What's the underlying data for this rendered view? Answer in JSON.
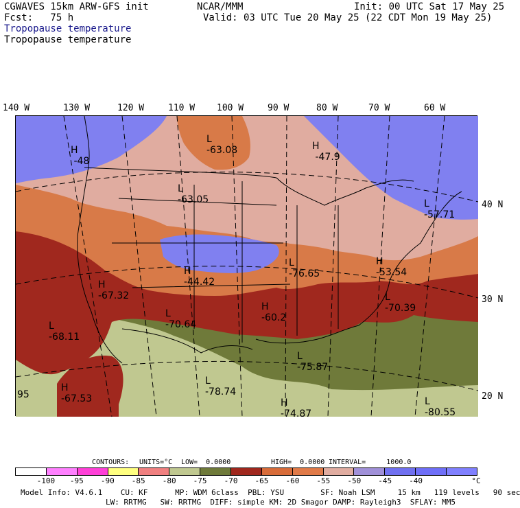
{
  "header": {
    "model": "CGWAVES 15km ARW-GFS init",
    "forecast": "Fcst:   75 h",
    "org": "NCAR/MMM",
    "init": "Init: 00 UTC Sat 17 May 25",
    "valid": "Valid: 03 UTC Tue 20 May 25 (22 CDT Mon 19 May 25)",
    "field_blue": "Tropopause temperature",
    "field_black": "Tropopause temperature"
  },
  "axes": {
    "longitudes": [
      "140 W",
      "130 W",
      "120 W",
      "110 W",
      "100 W",
      "90 W",
      "80 W",
      "70 W",
      "60 W"
    ],
    "latitudes": [
      "40 N",
      "30 N",
      "20 N"
    ]
  },
  "map_labels": [
    {
      "letter": "H",
      "value": "-48"
    },
    {
      "letter": "L",
      "value": "-63.08"
    },
    {
      "letter": "H",
      "value": "-47.9"
    },
    {
      "letter": "L",
      "value": "-63.05"
    },
    {
      "letter": "L",
      "value": "-57.71"
    },
    {
      "letter": "H",
      "value": "-53.54"
    },
    {
      "letter": "H",
      "value": "-44.42"
    },
    {
      "letter": "L",
      "value": "-76.65"
    },
    {
      "letter": "H",
      "value": "-67.32"
    },
    {
      "letter": "L",
      "value": "-70.64"
    },
    {
      "letter": "H",
      "value": "-60.2"
    },
    {
      "letter": "L",
      "value": "-70.39"
    },
    {
      "letter": "L",
      "value": "-68.11"
    },
    {
      "letter": "L",
      "value": "-75.87"
    },
    {
      "letter": "H",
      "value": "-67.53"
    },
    {
      "letter": "L",
      "value": "-78.74"
    },
    {
      "letter": "H",
      "value": "-74.87"
    },
    {
      "letter": "L",
      "value": "-80.55"
    },
    {
      "letter": "",
      "value": "95"
    }
  ],
  "contours": {
    "label": "CONTOURS:",
    "units": "UNITS=°C",
    "low": "LOW=  0.0000",
    "high": "HIGH=  0.0000",
    "interval": "INTERVAL=     1000.0"
  },
  "colorbar": {
    "colors": [
      "#ffffff",
      "#ff80ff",
      "#ff40d8",
      "#ffff80",
      "#f08080",
      "#c0c890",
      "#6f7a3a",
      "#a0281e",
      "#d86c3a",
      "#e07a48",
      "#e0aca0",
      "#a090d8",
      "#7070f0",
      "#6f6ff8",
      "#8080ff"
    ],
    "ticks": [
      "-100",
      "-95",
      "-90",
      "-85",
      "-80",
      "-75",
      "-70",
      "-65",
      "-60",
      "-55",
      "-50",
      "-45",
      "-40"
    ],
    "unit": "°C"
  },
  "footer": {
    "line1": "Model Info: V4.6.1    CU: KF      MP: WDM 6class  PBL: YSU        SF: Noah LSM     15 km   119 levels   90 sec",
    "line2": "LW: RRTMG   SW: RRTMG  DIFF: simple KM: 2D Smagor DAMP: Rayleigh3  SFLAY: MM5"
  },
  "legend_colors": {
    "zone_purple": "#8080f0",
    "zone_pink": "#e0aca0",
    "zone_orange": "#d87a48",
    "zone_red": "#a0281e",
    "zone_olive": "#6f7a3a",
    "zone_sage": "#c0c890"
  }
}
